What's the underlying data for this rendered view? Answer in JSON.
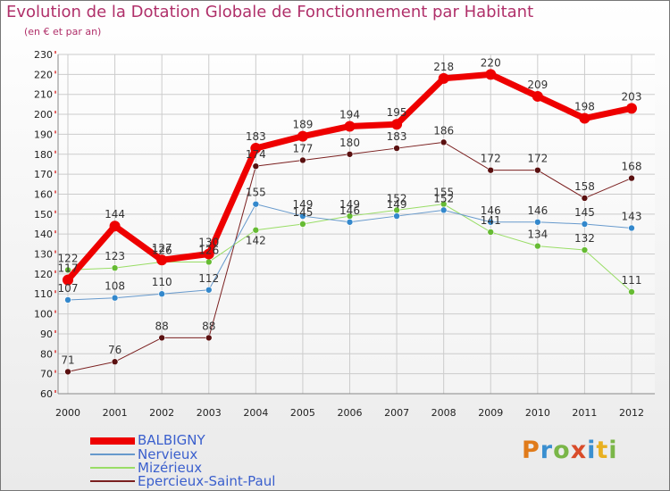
{
  "chart_data": {
    "type": "line",
    "title": "Evolution de la Dotation Globale de Fonctionnement par Habitant",
    "subtitle": "(en € et par an)",
    "xlabel": "",
    "ylabel": "",
    "ylim": [
      60,
      230
    ],
    "ytick_step": 10,
    "grid": true,
    "categories": [
      "2000",
      "2001",
      "2002",
      "2003",
      "2004",
      "2005",
      "2006",
      "2007",
      "2008",
      "2009",
      "2010",
      "2011",
      "2012"
    ],
    "series": [
      {
        "name": "Epercieux-Saint-Paul",
        "color": "#7a1f1f",
        "dot": "#5a1010",
        "width": 1,
        "values": [
          71,
          76,
          88,
          88,
          174,
          177,
          180,
          183,
          186,
          172,
          172,
          158,
          168
        ]
      },
      {
        "name": "Mizérieux",
        "color": "#99dd66",
        "dot": "#66bb33",
        "width": 1,
        "values": [
          122,
          123,
          126,
          126,
          142,
          145,
          149,
          152,
          155,
          141,
          134,
          132,
          111
        ]
      },
      {
        "name": "Nervieux",
        "color": "#6699cc",
        "dot": "#3388cc",
        "width": 1,
        "values": [
          107,
          108,
          110,
          112,
          155,
          149,
          146,
          149,
          152,
          146,
          146,
          145,
          143
        ]
      },
      {
        "name": "BALBIGNY",
        "color": "#ee0000",
        "dot": "#ee0000",
        "width": 7,
        "values": [
          117,
          144,
          127,
          130,
          183,
          189,
          194,
          195,
          218,
          220,
          209,
          198,
          203
        ]
      }
    ],
    "data_labels": [
      {
        "text": "71",
        "x": "2000",
        "y": 71,
        "above": true
      },
      {
        "text": "76",
        "x": "2001",
        "y": 76,
        "above": true
      },
      {
        "text": "88",
        "x": "2002",
        "y": 88,
        "above": true
      },
      {
        "text": "88",
        "x": "2003",
        "y": 88,
        "above": true
      },
      {
        "text": "174",
        "x": "2004",
        "y": 174,
        "above": true
      },
      {
        "text": "177",
        "x": "2005",
        "y": 177,
        "above": true
      },
      {
        "text": "180",
        "x": "2006",
        "y": 180,
        "above": true
      },
      {
        "text": "183",
        "x": "2007",
        "y": 183,
        "above": true
      },
      {
        "text": "186",
        "x": "2008",
        "y": 186,
        "above": true
      },
      {
        "text": "172",
        "x": "2009",
        "y": 172,
        "above": true
      },
      {
        "text": "172",
        "x": "2010",
        "y": 172,
        "above": true
      },
      {
        "text": "158",
        "x": "2011",
        "y": 158,
        "above": true
      },
      {
        "text": "168",
        "x": "2012",
        "y": 168,
        "above": true
      },
      {
        "text": "122",
        "x": "2000",
        "y": 122,
        "above": true
      },
      {
        "text": "123",
        "x": "2001",
        "y": 123,
        "above": true
      },
      {
        "text": "126",
        "x": "2002",
        "y": 126,
        "above": true
      },
      {
        "text": "126",
        "x": "2003",
        "y": 126,
        "above": true
      },
      {
        "text": "142",
        "x": "2004",
        "y": 142,
        "above": false
      },
      {
        "text": "145",
        "x": "2005",
        "y": 145,
        "above": true
      },
      {
        "text": "149",
        "x": "2006",
        "y": 149,
        "above": true
      },
      {
        "text": "152",
        "x": "2007",
        "y": 152,
        "above": true
      },
      {
        "text": "155",
        "x": "2008",
        "y": 155,
        "above": true
      },
      {
        "text": "141",
        "x": "2009",
        "y": 141,
        "above": true
      },
      {
        "text": "134",
        "x": "2010",
        "y": 134,
        "above": true
      },
      {
        "text": "132",
        "x": "2011",
        "y": 132,
        "above": true
      },
      {
        "text": "111",
        "x": "2012",
        "y": 111,
        "above": true
      },
      {
        "text": "107",
        "x": "2000",
        "y": 107,
        "above": true
      },
      {
        "text": "108",
        "x": "2001",
        "y": 108,
        "above": true
      },
      {
        "text": "110",
        "x": "2002",
        "y": 110,
        "above": true
      },
      {
        "text": "112",
        "x": "2003",
        "y": 112,
        "above": true
      },
      {
        "text": "155",
        "x": "2004",
        "y": 155,
        "above": true
      },
      {
        "text": "149",
        "x": "2005",
        "y": 149,
        "above": true
      },
      {
        "text": "146",
        "x": "2006",
        "y": 146,
        "above": true
      },
      {
        "text": "149",
        "x": "2007",
        "y": 149,
        "above": true
      },
      {
        "text": "152",
        "x": "2008",
        "y": 152,
        "above": true
      },
      {
        "text": "146",
        "x": "2009",
        "y": 146,
        "above": true
      },
      {
        "text": "146",
        "x": "2010",
        "y": 146,
        "above": true
      },
      {
        "text": "145",
        "x": "2011",
        "y": 145,
        "above": true
      },
      {
        "text": "143",
        "x": "2012",
        "y": 143,
        "above": true
      },
      {
        "text": "117",
        "x": "2000",
        "y": 117,
        "above": true
      },
      {
        "text": "144",
        "x": "2001",
        "y": 144,
        "above": true
      },
      {
        "text": "127",
        "x": "2002",
        "y": 127,
        "above": true
      },
      {
        "text": "130",
        "x": "2003",
        "y": 130,
        "above": true
      },
      {
        "text": "183",
        "x": "2004",
        "y": 183,
        "above": true
      },
      {
        "text": "189",
        "x": "2005",
        "y": 189,
        "above": true
      },
      {
        "text": "194",
        "x": "2006",
        "y": 194,
        "above": true
      },
      {
        "text": "195",
        "x": "2007",
        "y": 195,
        "above": true
      },
      {
        "text": "218",
        "x": "2008",
        "y": 218,
        "above": true
      },
      {
        "text": "220",
        "x": "2009",
        "y": 220,
        "above": true
      },
      {
        "text": "209",
        "x": "2010",
        "y": 209,
        "above": true
      },
      {
        "text": "198",
        "x": "2011",
        "y": 198,
        "above": true
      },
      {
        "text": "203",
        "x": "2012",
        "y": 203,
        "above": true
      }
    ],
    "legend_placement": "bottom-left"
  },
  "legend": {
    "items": [
      {
        "label": "BALBIGNY",
        "color": "#ee0000"
      },
      {
        "label": "Nervieux",
        "color": "#6699cc"
      },
      {
        "label": "Mizérieux",
        "color": "#99dd66"
      },
      {
        "label": "Epercieux-Saint-Paul",
        "color": "#7a1f1f"
      }
    ]
  },
  "brand": {
    "letters": [
      {
        "ch": "P",
        "color": "#e07b1a"
      },
      {
        "ch": "r",
        "color": "#3a8fd0"
      },
      {
        "ch": "o",
        "color": "#7ab648"
      },
      {
        "ch": "x",
        "color": "#d94c2a"
      },
      {
        "ch": "i",
        "color": "#3a8fd0"
      },
      {
        "ch": "t",
        "color": "#e8b020"
      },
      {
        "ch": "i",
        "color": "#7ab648"
      }
    ]
  }
}
